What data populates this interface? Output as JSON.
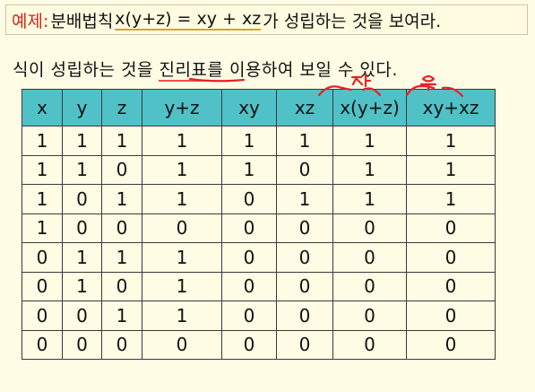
{
  "title": {
    "label": "예제:",
    "before": " 분배법칙 ",
    "formula": "x(y+z) = xy + xz",
    "after": "가 성립하는 것을 보여라."
  },
  "intro": {
    "part1": "식이 성립하는 것을 ",
    "highlight": "진리표",
    "part2": "를 이용하여 보일 수 있다."
  },
  "table": {
    "headers": [
      "x",
      "y",
      "z",
      "y+z",
      "xy",
      "xz",
      "x(y+z)",
      "xy+xz"
    ],
    "rows": [
      [
        "1",
        "1",
        "1",
        "1",
        "1",
        "1",
        "1",
        "1"
      ],
      [
        "1",
        "1",
        "0",
        "1",
        "1",
        "0",
        "1",
        "1"
      ],
      [
        "1",
        "0",
        "1",
        "1",
        "0",
        "1",
        "1",
        "1"
      ],
      [
        "1",
        "0",
        "0",
        "0",
        "0",
        "0",
        "0",
        "0"
      ],
      [
        "0",
        "1",
        "1",
        "1",
        "0",
        "0",
        "0",
        "0"
      ],
      [
        "0",
        "1",
        "0",
        "1",
        "0",
        "0",
        "0",
        "0"
      ],
      [
        "0",
        "0",
        "1",
        "1",
        "0",
        "0",
        "0",
        "0"
      ],
      [
        "0",
        "0",
        "0",
        "0",
        "0",
        "0",
        "0",
        "0"
      ]
    ]
  },
  "annotations": {
    "left_handwritten": "좌",
    "right_handwritten": "우",
    "ink_color": "#e8202a"
  }
}
